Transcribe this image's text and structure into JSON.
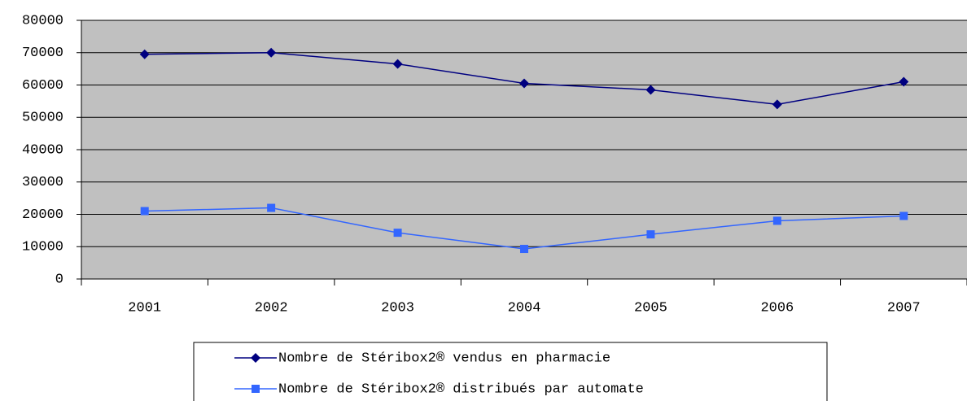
{
  "chart_data": {
    "type": "line",
    "categories": [
      "2001",
      "2002",
      "2003",
      "2004",
      "2005",
      "2006",
      "2007"
    ],
    "series": [
      {
        "name": "Nombre de Stéribox2® vendus en pharmacie",
        "color": "#000080",
        "marker": "diamond",
        "values": [
          69500,
          70000,
          66500,
          60500,
          58500,
          54000,
          61000
        ]
      },
      {
        "name": "Nombre de Stéribox2® distribués par automate",
        "color": "#3366ff",
        "marker": "square",
        "values": [
          21000,
          22000,
          14300,
          9300,
          13800,
          18000,
          19500
        ]
      }
    ],
    "ylim": [
      0,
      80000
    ],
    "yticks": [
      0,
      10000,
      20000,
      30000,
      40000,
      50000,
      60000,
      70000,
      80000
    ],
    "grid": true,
    "plot_background": "#c0c0c0",
    "legend": "bottom"
  }
}
